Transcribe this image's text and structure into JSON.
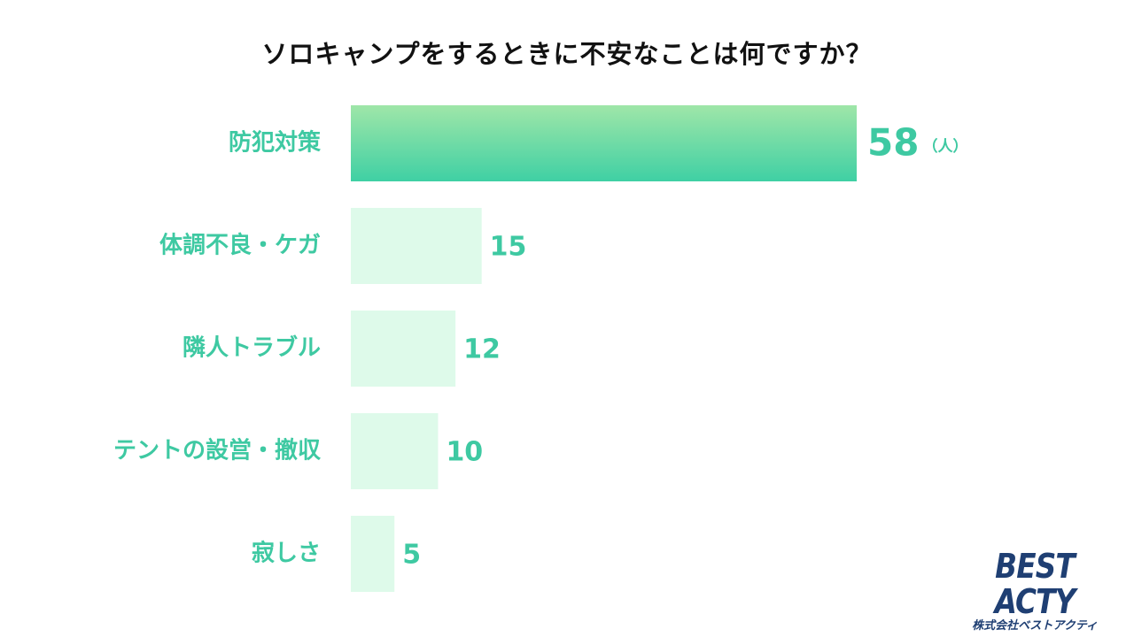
{
  "chart_data": {
    "type": "bar",
    "orientation": "horizontal",
    "title": "ソロキャンプをするときに不安なことは何ですか？",
    "categories": [
      "防犯対策",
      "体調不良・ケガ",
      "隣人トラブル",
      "テントの設営・撤収",
      "寂しさ"
    ],
    "values": [
      58,
      15,
      12,
      10,
      5
    ],
    "unit": "（人）",
    "xlim": [
      0,
      58
    ],
    "grid": false,
    "colors": {
      "highlight_top": "#9fe6a8",
      "highlight_bottom": "#3fd0a4",
      "bar": "#defaea",
      "label": "#3ec9a2"
    }
  },
  "brand": {
    "logo_text": "BEST ACTY",
    "company": "株式会社ベストアクティ"
  }
}
